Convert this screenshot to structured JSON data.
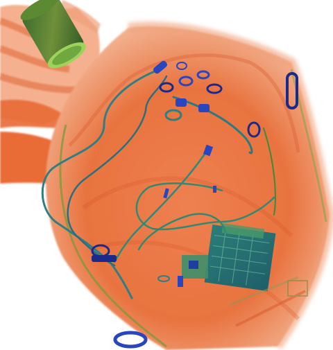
{
  "image": {
    "kind": "x-ray baggage scan",
    "palette": {
      "background": "#ffffff",
      "organic": "#e8703a",
      "organic_dark": "#c84a1e",
      "organic_light": "#f6b48f",
      "inorganic_green": "#4f9a54",
      "inorganic_teal": "#2f7f6e",
      "dense_metal_blue": "#2a45c0",
      "dense_metal_navy": "#1b2a8a"
    },
    "objects": [
      {
        "name": "cylindrical-can",
        "material": "inorganic"
      },
      {
        "name": "cloth-folds-left",
        "material": "organic"
      },
      {
        "name": "cable-loop",
        "material": "metal"
      },
      {
        "name": "electronic-device",
        "material": "inorganic"
      },
      {
        "name": "small-connector-clips",
        "material": "metal"
      },
      {
        "name": "zipper-pull-right",
        "material": "metal"
      },
      {
        "name": "zipper-pull-bottom",
        "material": "metal"
      }
    ]
  }
}
